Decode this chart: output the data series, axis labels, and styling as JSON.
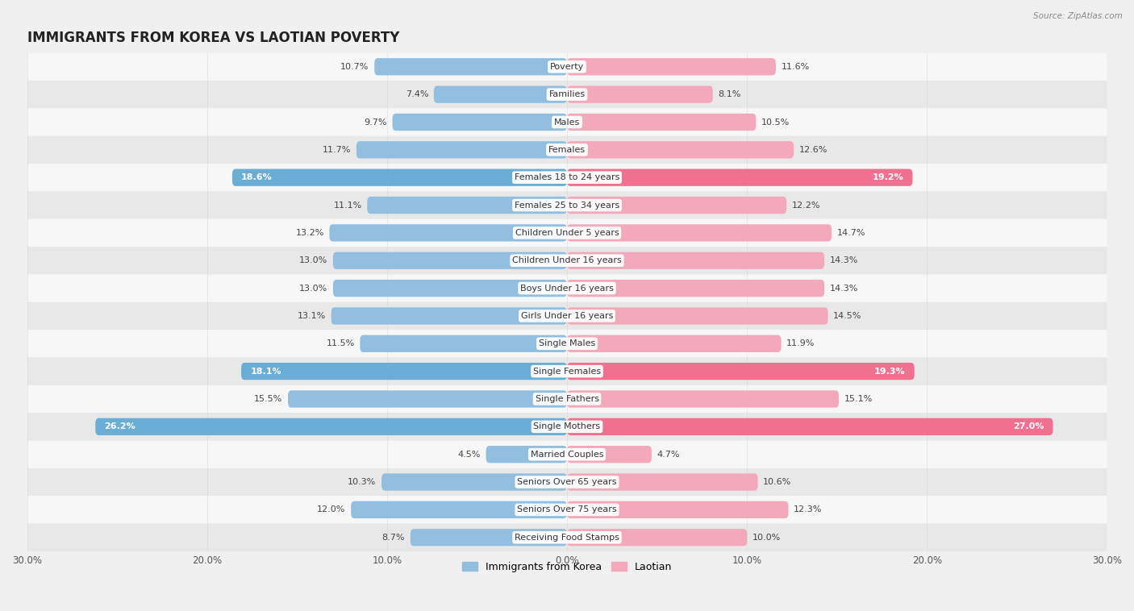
{
  "title": "IMMIGRANTS FROM KOREA VS LAOTIAN POVERTY",
  "source": "Source: ZipAtlas.com",
  "categories": [
    "Poverty",
    "Families",
    "Males",
    "Females",
    "Females 18 to 24 years",
    "Females 25 to 34 years",
    "Children Under 5 years",
    "Children Under 16 years",
    "Boys Under 16 years",
    "Girls Under 16 years",
    "Single Males",
    "Single Females",
    "Single Fathers",
    "Single Mothers",
    "Married Couples",
    "Seniors Over 65 years",
    "Seniors Over 75 years",
    "Receiving Food Stamps"
  ],
  "korea_values": [
    10.7,
    7.4,
    9.7,
    11.7,
    18.6,
    11.1,
    13.2,
    13.0,
    13.0,
    13.1,
    11.5,
    18.1,
    15.5,
    26.2,
    4.5,
    10.3,
    12.0,
    8.7
  ],
  "laotian_values": [
    11.6,
    8.1,
    10.5,
    12.6,
    19.2,
    12.2,
    14.7,
    14.3,
    14.3,
    14.5,
    11.9,
    19.3,
    15.1,
    27.0,
    4.7,
    10.6,
    12.3,
    10.0
  ],
  "korea_color": "#92bfdf",
  "korea_highlight_color": "#6aadd5",
  "laotian_color": "#f4a8bc",
  "laotian_highlight_color": "#f07090",
  "highlight_rows": [
    4,
    11,
    13
  ],
  "xlim": 30.0,
  "bar_height": 0.62,
  "background_color": "#f0f0f0",
  "row_light_color": "#f7f7f7",
  "row_dark_color": "#e8e8e8",
  "title_fontsize": 12,
  "label_fontsize": 8,
  "value_fontsize": 8,
  "legend_fontsize": 9
}
